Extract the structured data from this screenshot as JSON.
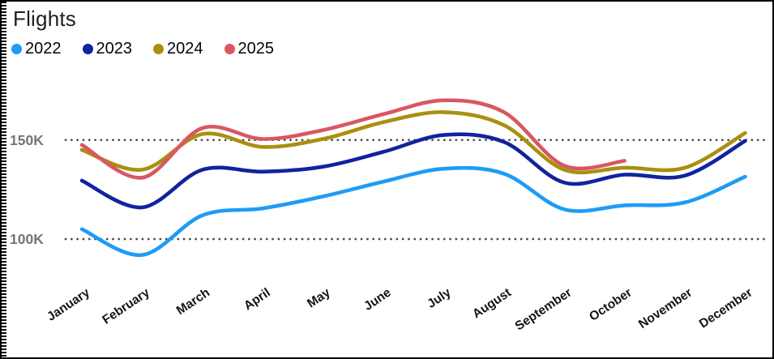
{
  "title": "Flights",
  "chart_data": {
    "type": "line",
    "title": "Flights",
    "units": "thousands of flights",
    "smoothing": true,
    "grid": "dotted-horizontal",
    "legend_position": "top-left",
    "xlabel": "",
    "ylabel": "",
    "ylim": [
      80,
      180
    ],
    "y_ticks": [
      {
        "label": "150K",
        "value": 150
      },
      {
        "label": "100K",
        "value": 100
      }
    ],
    "categories": [
      "January",
      "February",
      "March",
      "April",
      "May",
      "June",
      "July",
      "August",
      "September",
      "October",
      "November",
      "December"
    ],
    "series": [
      {
        "name": "2022",
        "color": "#1E9CF5",
        "values": [
          105,
          92,
          112,
          115.5,
          121.5,
          129,
          135.5,
          133,
          115,
          117,
          118.5,
          131.5
        ]
      },
      {
        "name": "2023",
        "color": "#12239E",
        "values": [
          129.5,
          116,
          135,
          134,
          136.5,
          144,
          152.5,
          149,
          128.5,
          132.5,
          132,
          149.5
        ]
      },
      {
        "name": "2024",
        "color": "#A9900F",
        "values": [
          145,
          135,
          153,
          146.5,
          150.5,
          159,
          164,
          157.5,
          135,
          136,
          136,
          153.5
        ]
      },
      {
        "name": "2025",
        "color": "#D95763",
        "values": [
          147.5,
          131,
          156,
          150.5,
          155,
          163,
          170,
          164,
          137,
          139.5,
          null,
          null
        ]
      }
    ]
  },
  "colors": {
    "background": "#FFFFFF",
    "border": "#000000",
    "gridline_dots": "#4D4D4D",
    "y_axis_label": "#757575",
    "x_axis_label": "#151515",
    "title_text": "#1F1F1F"
  }
}
